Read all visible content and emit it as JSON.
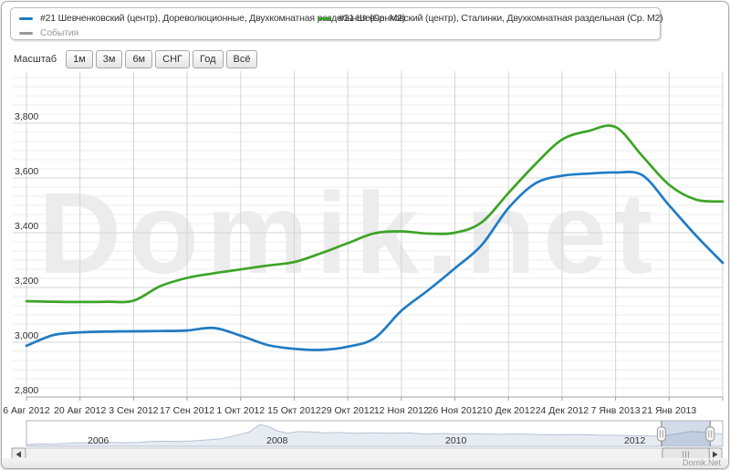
{
  "legend": {
    "series": [
      {
        "label": "#21 Шевченковский (центр), Дореволюционные, Двухкомнатная раздельная (Ср. М2)",
        "color": "#1f7bc4"
      },
      {
        "label": "#21 Шевченковский (центр), Сталинки, Двухкомнатная раздельная (Ср. М2)",
        "color": "#3da426"
      }
    ],
    "events": {
      "label": "События",
      "color": "#999999"
    }
  },
  "range_selector": {
    "label": "Масштаб",
    "buttons": [
      "1м",
      "3м",
      "6м",
      "СНГ",
      "Год",
      "Всё"
    ]
  },
  "watermark": "Domik.net",
  "credit": "Domik.Net",
  "colors": {
    "series_blue": "#1f7bc4",
    "series_green": "#3da426",
    "events_gray": "#999999",
    "grid_minor": "#ececec",
    "grid_major": "#d6d6d6",
    "grid_vertical": "#d4d4d4",
    "axis_line": "#a0a0a0",
    "label_text": "#333333",
    "navigator_fill": "#e7ecf3",
    "navigator_line": "#b6c2d4",
    "selection_tint": "#5c7cab"
  },
  "chart_data": {
    "type": "line",
    "title": "",
    "xlabel": "",
    "ylabel": "",
    "ylim": [
      2800,
      3800
    ],
    "grid": "horizontal minor+major, vertical major",
    "legend_position": "top-left",
    "x": [
      "2012-08-06",
      "2012-08-13",
      "2012-08-20",
      "2012-08-27",
      "2012-09-03",
      "2012-09-10",
      "2012-09-17",
      "2012-09-24",
      "2012-10-01",
      "2012-10-08",
      "2012-10-15",
      "2012-10-22",
      "2012-10-29",
      "2012-11-05",
      "2012-11-12",
      "2012-11-19",
      "2012-11-26",
      "2012-12-03",
      "2012-12-10",
      "2012-12-17",
      "2012-12-24",
      "2012-12-31",
      "2013-01-07",
      "2013-01-14",
      "2013-01-21",
      "2013-01-28",
      "2013-02-04"
    ],
    "series": [
      {
        "name": "#21 Шевченковский (центр), Дореволюционные, Двухкомнатная раздельная (Ср. М2)",
        "color": "#1f7bc4",
        "values": [
          2987,
          3026,
          3036,
          3039,
          3040,
          3041,
          3043,
          3052,
          3024,
          2990,
          2976,
          2972,
          2984,
          3015,
          3115,
          3190,
          3270,
          3355,
          3490,
          3580,
          3608,
          3616,
          3620,
          3610,
          3500,
          3390,
          3290
        ]
      },
      {
        "name": "#21 Шевченковский (центр), Сталинки, Двухкомнатная раздельная (Ср. М2)",
        "color": "#3da426",
        "values": [
          3150,
          3148,
          3147,
          3148,
          3152,
          3205,
          3235,
          3252,
          3266,
          3280,
          3293,
          3325,
          3362,
          3398,
          3405,
          3397,
          3400,
          3438,
          3545,
          3650,
          3740,
          3772,
          3786,
          3680,
          3575,
          3521,
          3514
        ]
      }
    ],
    "y_ticks": [
      2800,
      3000,
      3200,
      3400,
      3600,
      3800
    ],
    "y_tick_labels": [
      "2,800",
      "3,000",
      "3,200",
      "3,400",
      "3,600",
      "3,800"
    ],
    "x_tick_labels": [
      "6 Авг 2012",
      "20 Авг 2012",
      "3 Сен 2012",
      "17 Сен 2012",
      "1 Окт 2012",
      "15 Окт 2012",
      "29 Окт 2012",
      "12 Ноя 2012",
      "26 Ноя 2012",
      "10 Дек 2012",
      "24 Дек 2012",
      "7 Янв 2013",
      "21 Янв 2013"
    ],
    "navigator": {
      "year_labels": [
        "2006",
        "2008",
        "2010",
        "2012"
      ],
      "selection": [
        0.912,
        0.982
      ],
      "points": [
        [
          0,
          0.07
        ],
        [
          0.02,
          0.1
        ],
        [
          0.04,
          0.09
        ],
        [
          0.06,
          0.13
        ],
        [
          0.08,
          0.15
        ],
        [
          0.1,
          0.13
        ],
        [
          0.12,
          0.17
        ],
        [
          0.14,
          0.15
        ],
        [
          0.16,
          0.16
        ],
        [
          0.18,
          0.2
        ],
        [
          0.2,
          0.21
        ],
        [
          0.22,
          0.2
        ],
        [
          0.24,
          0.23
        ],
        [
          0.26,
          0.27
        ],
        [
          0.28,
          0.32
        ],
        [
          0.3,
          0.45
        ],
        [
          0.32,
          0.6
        ],
        [
          0.335,
          0.92
        ],
        [
          0.35,
          0.8
        ],
        [
          0.36,
          0.65
        ],
        [
          0.375,
          0.55
        ],
        [
          0.39,
          0.62
        ],
        [
          0.41,
          0.6
        ],
        [
          0.43,
          0.56
        ],
        [
          0.45,
          0.58
        ],
        [
          0.47,
          0.55
        ],
        [
          0.5,
          0.57
        ],
        [
          0.52,
          0.55
        ],
        [
          0.55,
          0.56
        ],
        [
          0.57,
          0.52
        ],
        [
          0.6,
          0.54
        ],
        [
          0.62,
          0.52
        ],
        [
          0.65,
          0.53
        ],
        [
          0.68,
          0.5
        ],
        [
          0.7,
          0.52
        ],
        [
          0.73,
          0.5
        ],
        [
          0.76,
          0.48
        ],
        [
          0.79,
          0.5
        ],
        [
          0.82,
          0.47
        ],
        [
          0.85,
          0.46
        ],
        [
          0.88,
          0.44
        ],
        [
          0.905,
          0.43
        ],
        [
          0.92,
          0.46
        ],
        [
          0.94,
          0.55
        ],
        [
          0.955,
          0.63
        ],
        [
          0.97,
          0.6
        ],
        [
          0.985,
          0.55
        ],
        [
          1.0,
          0.52
        ]
      ]
    }
  }
}
